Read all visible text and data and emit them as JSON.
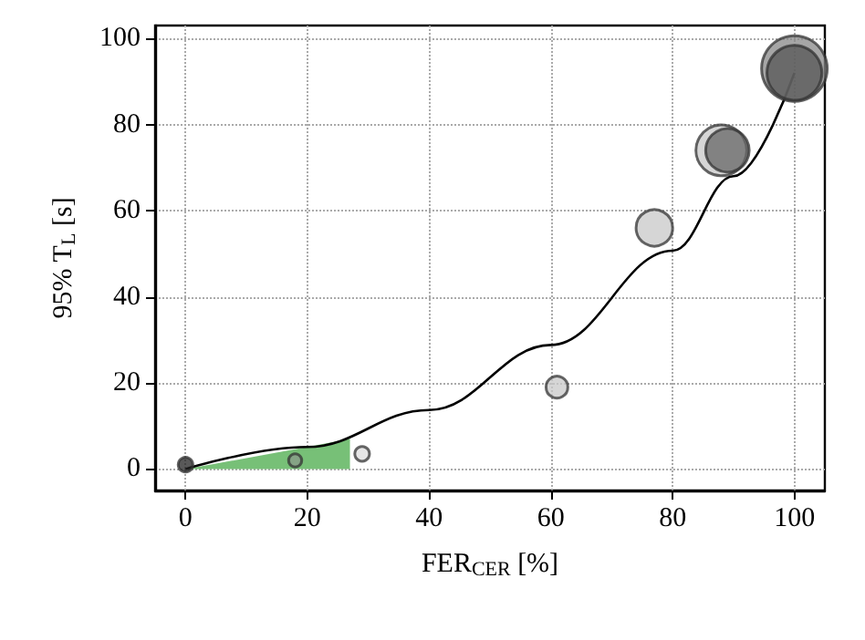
{
  "chart_data": {
    "type": "bubble",
    "xlabel": "FER$_{CER}$ [%]",
    "ylabel": "95% T$_{L}$ [s]",
    "xlim": [
      -5,
      105
    ],
    "ylim": [
      -5,
      103
    ],
    "xticks": [
      0,
      20,
      40,
      60,
      80,
      100
    ],
    "yticks": [
      0,
      20,
      40,
      60,
      80,
      100
    ],
    "grid": true,
    "series": [
      {
        "type": "area",
        "color": "#77c077",
        "x": [
          0,
          10,
          20,
          27
        ],
        "values": [
          0,
          2.5,
          5.1,
          7
        ]
      },
      {
        "type": "line",
        "color": "#000000",
        "x": [
          0,
          20,
          40,
          60,
          80,
          90,
          100
        ],
        "values": [
          0,
          5.1,
          13.7,
          28.8,
          50.7,
          68,
          92
        ]
      },
      {
        "x": [
          0,
          18,
          29,
          61,
          77,
          88,
          89,
          100,
          100
        ],
        "values": [
          1,
          2,
          3.5,
          19,
          56,
          74,
          74,
          93,
          92
        ],
        "sizes": [
          0.05,
          0.04,
          0.05,
          0.11,
          0.31,
          0.6,
          0.44,
          1,
          0.7
        ],
        "colors": [
          "#222222",
          "#8a9a8a",
          "#dddddd",
          "#c8c8c8",
          "#c8c8c8",
          "#c8c8c8",
          "#666666",
          "#888888",
          "#555555"
        ]
      }
    ]
  }
}
